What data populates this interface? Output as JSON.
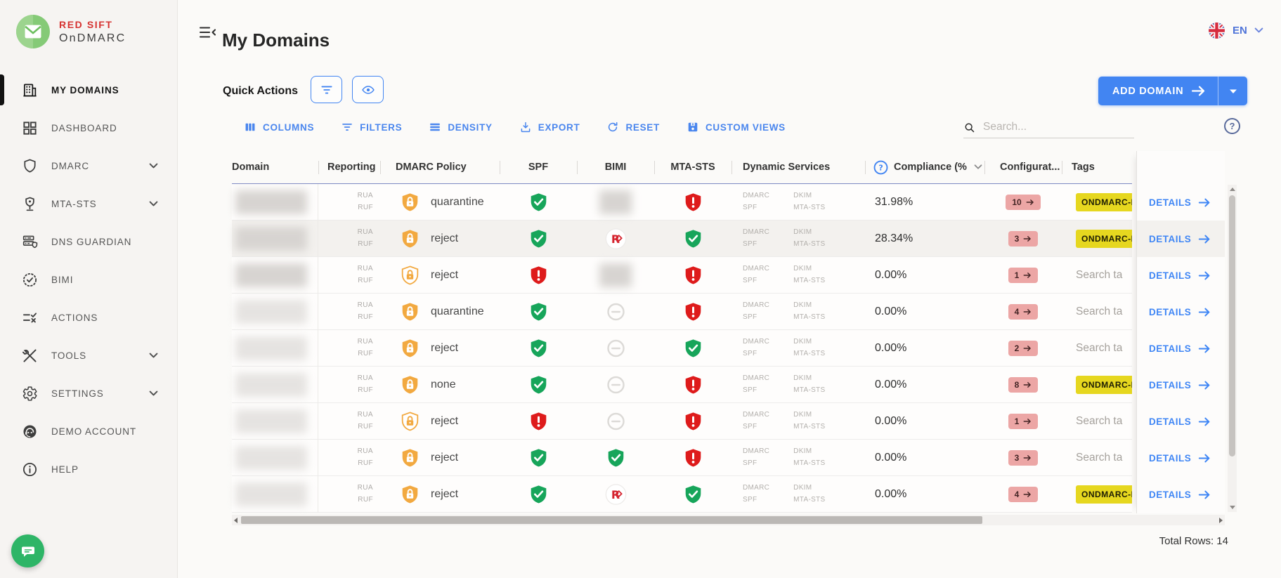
{
  "brand": {
    "line1": "RED SIFT",
    "line2": "OnDMARC"
  },
  "sidebar": {
    "items": [
      {
        "label": "MY DOMAINS",
        "icon": "building-icon",
        "active": true
      },
      {
        "label": "DASHBOARD",
        "icon": "dashboard-icon"
      },
      {
        "label": "DMARC",
        "icon": "shield-icon",
        "chevron": true
      },
      {
        "label": "MTA-STS",
        "icon": "mta-sts-icon",
        "chevron": true
      },
      {
        "label": "DNS GUARDIAN",
        "icon": "dns-guardian-icon"
      },
      {
        "label": "BIMI",
        "icon": "bimi-seal-icon"
      },
      {
        "label": "ACTIONS",
        "icon": "actions-icon"
      },
      {
        "label": "TOOLS",
        "icon": "tools-icon",
        "chevron": true
      },
      {
        "label": "SETTINGS",
        "icon": "settings-gear-icon",
        "chevron": true
      },
      {
        "label": "DEMO ACCOUNT",
        "icon": "headset-icon"
      },
      {
        "label": "HELP",
        "icon": "info-icon"
      }
    ]
  },
  "topbar": {
    "title": "My Domains",
    "language": "EN"
  },
  "actions_bar": {
    "quick_actions_label": "Quick Actions",
    "add_domain_label": "ADD DOMAIN"
  },
  "toolbar": {
    "buttons": [
      {
        "label": "COLUMNS",
        "icon": "columns-icon"
      },
      {
        "label": "FILTERS",
        "icon": "filter-list-icon"
      },
      {
        "label": "DENSITY",
        "icon": "density-icon"
      },
      {
        "label": "EXPORT",
        "icon": "export-icon"
      },
      {
        "label": "RESET",
        "icon": "reset-icon"
      },
      {
        "label": "CUSTOM VIEWS",
        "icon": "custom-views-icon"
      }
    ],
    "search_placeholder": "Search..."
  },
  "table": {
    "columns": [
      {
        "label": "Domain"
      },
      {
        "label": "Reporting"
      },
      {
        "label": "DMARC Policy"
      },
      {
        "label": "SPF"
      },
      {
        "label": "BIMI"
      },
      {
        "label": "MTA-STS"
      },
      {
        "label": "Dynamic Services"
      },
      {
        "label": "Compliance (%",
        "help": true,
        "chevron": true
      },
      {
        "label": "Configurat..."
      },
      {
        "label": "Tags"
      }
    ],
    "reporting_labels": [
      "RUA",
      "RUF"
    ],
    "dynamic_service_groups": [
      [
        "DMARC",
        "SPF"
      ],
      [
        "DKIM",
        "MTA-STS"
      ]
    ],
    "tag_search_placeholder": "Search ta",
    "details_label": "DETAILS",
    "rows": [
      {
        "policy": "quarantine",
        "policy_variant": "filled",
        "spf": "pass",
        "bimi": "blurred",
        "mta_sts": "fail",
        "compliance": "31.98%",
        "config_count": "10",
        "tag_type": "label",
        "tag_text": "ONDMARC-E"
      },
      {
        "policy": "reject",
        "policy_variant": "filled",
        "spf": "pass",
        "bimi": "logo",
        "mta_sts": "pass",
        "compliance": "28.34%",
        "config_count": "3",
        "tag_type": "label",
        "tag_text": "ONDMARC-E",
        "highlighted": true
      },
      {
        "policy": "reject",
        "policy_variant": "outline",
        "spf": "fail",
        "bimi": "blurred",
        "mta_sts": "fail",
        "compliance": "0.00%",
        "config_count": "1",
        "tag_type": "search"
      },
      {
        "policy": "quarantine",
        "policy_variant": "filled",
        "spf": "pass",
        "bimi": "none",
        "mta_sts": "fail",
        "compliance": "0.00%",
        "config_count": "4",
        "tag_type": "search"
      },
      {
        "policy": "reject",
        "policy_variant": "filled",
        "spf": "pass",
        "bimi": "none",
        "mta_sts": "pass",
        "compliance": "0.00%",
        "config_count": "2",
        "tag_type": "search"
      },
      {
        "policy": "none",
        "policy_variant": "filled",
        "spf": "pass",
        "bimi": "none",
        "mta_sts": "fail",
        "compliance": "0.00%",
        "config_count": "8",
        "tag_type": "label",
        "tag_text": "ONDMARC-E"
      },
      {
        "policy": "reject",
        "policy_variant": "outline",
        "spf": "fail",
        "bimi": "none",
        "mta_sts": "fail",
        "compliance": "0.00%",
        "config_count": "1",
        "tag_type": "search"
      },
      {
        "policy": "reject",
        "policy_variant": "filled",
        "spf": "pass",
        "bimi": "pass",
        "mta_sts": "fail",
        "compliance": "0.00%",
        "config_count": "3",
        "tag_type": "search"
      },
      {
        "policy": "reject",
        "policy_variant": "filled",
        "spf": "pass",
        "bimi": "logo",
        "mta_sts": "pass",
        "compliance": "0.00%",
        "config_count": "4",
        "tag_type": "label",
        "tag_text": "ONDMARC-E"
      }
    ],
    "total_rows_label": "Total Rows: 14"
  },
  "colors": {
    "accent_blue": "#4285f2",
    "pass_green": "#17a55a",
    "fail_red": "#de1b1b",
    "policy_orange": "#f2a940",
    "config_badge_bg": "#eca6a5",
    "tag_yellow": "#e6d71f"
  }
}
